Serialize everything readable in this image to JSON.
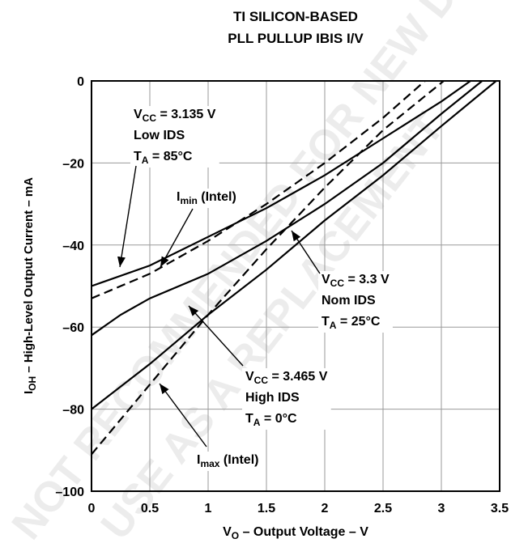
{
  "chart_data": {
    "type": "line",
    "title": [
      "TI SILICON-BASED",
      "PLL PULLUP IBIS I/V"
    ],
    "watermark": [
      "NOT RECOMMENDED FOR NEW DESIGNS",
      "USE AS A REPLACEMENT"
    ],
    "x_label": {
      "main": "V",
      "sub": "O",
      "rest": " – Output Voltage – V"
    },
    "y_label": {
      "main": "I",
      "sub": "OH",
      "rest": " – High-Level Output Current – mA"
    },
    "xlim": [
      0,
      3.5
    ],
    "xticks": [
      0,
      0.5,
      1,
      1.5,
      2,
      2.5,
      3,
      3.5
    ],
    "ylim": [
      -100,
      0
    ],
    "yticks": [
      {
        "value": -100,
        "label": "–100"
      },
      {
        "value": -80,
        "label": "–80"
      },
      {
        "value": -60,
        "label": "–60"
      },
      {
        "value": -40,
        "label": "–40"
      },
      {
        "value": -20,
        "label": "–20"
      },
      0
    ],
    "grid": true,
    "series": [
      {
        "style": "solid",
        "color": "#000000",
        "x": [
          0,
          0.5,
          1,
          1.5,
          2,
          2.5,
          3,
          3.25
        ],
        "values": [
          -50,
          -45,
          -38,
          -31,
          -23,
          -14,
          -5,
          0
        ]
      },
      {
        "style": "dashed",
        "color": "#000000",
        "x": [
          0,
          0.5,
          1,
          1.5,
          2,
          2.5,
          2.86
        ],
        "values": [
          -53,
          -47,
          -39,
          -30,
          -20,
          -9,
          0
        ]
      },
      {
        "style": "solid",
        "color": "#000000",
        "x": [
          0,
          0.25,
          0.5,
          1,
          1.5,
          2,
          2.5,
          3,
          3.35
        ],
        "values": [
          -62,
          -57,
          -53,
          -47,
          -39,
          -30,
          -20,
          -8,
          0
        ]
      },
      {
        "style": "solid",
        "color": "#000000",
        "x": [
          0,
          0.5,
          1,
          1.5,
          2,
          2.5,
          3,
          3.47
        ],
        "values": [
          -80,
          -69,
          -57,
          -46,
          -34,
          -23,
          -11,
          0
        ]
      },
      {
        "style": "dashed",
        "color": "#000000",
        "x": [
          0,
          0.5,
          1,
          1.5,
          2,
          2.5,
          3.02
        ],
        "values": [
          -91,
          -74,
          -57,
          -41,
          -26,
          -12,
          0
        ]
      }
    ],
    "annotations": [
      {
        "lines": [
          {
            "main": "V",
            "sub": "CC",
            "rest": " = 3.135 V"
          },
          {
            "main": "Low IDS"
          },
          {
            "main": "T",
            "sub": "A",
            "rest": " = 85°C"
          }
        ]
      },
      {
        "lines": [
          {
            "main": "I",
            "sub": "min",
            "rest": " (Intel)"
          }
        ]
      },
      {
        "lines": [
          {
            "main": "V",
            "sub": "CC",
            "rest": " = 3.3 V"
          },
          {
            "main": "Nom IDS"
          },
          {
            "main": "T",
            "sub": "A",
            "rest": " = 25°C"
          }
        ]
      },
      {
        "lines": [
          {
            "main": "V",
            "sub": "CC",
            "rest": " = 3.465 V"
          },
          {
            "main": "High IDS"
          },
          {
            "main": "T",
            "sub": "A",
            "rest": " = 0°C"
          }
        ]
      },
      {
        "lines": [
          {
            "main": "I",
            "sub": "max",
            "rest": " (Intel)"
          }
        ]
      }
    ]
  }
}
